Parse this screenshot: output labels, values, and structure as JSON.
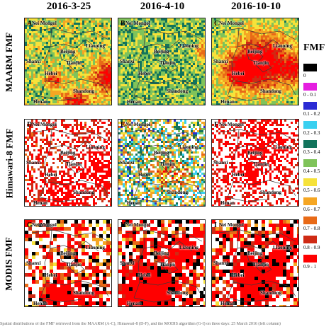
{
  "figure": {
    "legend_title": "FMF",
    "columns": [
      "2016-3-25",
      "2016-4-10",
      "2016-10-10"
    ],
    "rows": [
      "MAARM FMF",
      "Himawari-8 FMF",
      "MODIS FMF"
    ],
    "panel_letters": [
      "A",
      "B",
      "C",
      "D",
      "E",
      "F",
      "G",
      "H",
      "I"
    ],
    "region_labels": {
      "nei_mongol": "Nei Mongol",
      "liaoning": "Liaoning",
      "beijing": "Beijing",
      "tianjin": "Tianjin",
      "shanxi": "Shanxi",
      "hebei": "Hebei",
      "shandong": "Shandong",
      "henan": "Henan"
    },
    "legend": [
      {
        "label": "0",
        "color": "#000000"
      },
      {
        "label": "0 - 0.1",
        "color": "#e51ee0"
      },
      {
        "label": "0.1 - 0.2",
        "color": "#2b2bd4"
      },
      {
        "label": "0.2 - 0.3",
        "color": "#3ad0f0"
      },
      {
        "label": "0.3 - 0.4",
        "color": "#12745c"
      },
      {
        "label": "0.4 - 0.5",
        "color": "#7fc35a"
      },
      {
        "label": "0.5 - 0.6",
        "color": "#f6e23a"
      },
      {
        "label": "0.6 - 0.7",
        "color": "#f5a623"
      },
      {
        "label": "0.7 - 0.8",
        "color": "#e86a17"
      },
      {
        "label": "0.8 - 0.9",
        "color": "#cf2a14"
      },
      {
        "label": "0.9 - 1",
        "color": "#ff0000"
      }
    ],
    "caption": "Spatial distributions of the FMF retrieved from the MAARM (A-C), Himawari-8 (D-F), and the MODIS algorithm (G-I) on three days: 25 March 2016 (left column)"
  }
}
